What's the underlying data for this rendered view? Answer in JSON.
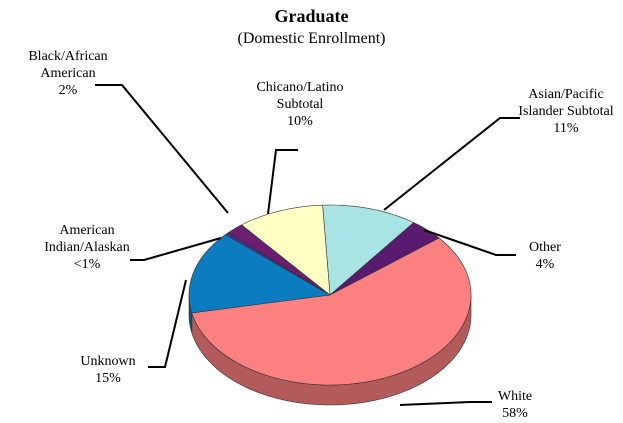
{
  "chart_data": {
    "type": "pie",
    "title": "Graduate",
    "subtitle": "(Domestic Enrollment)",
    "categories": [
      "Asian/Pacific Islander Subtotal",
      "Other",
      "White",
      "Unknown",
      "American Indian/Alaskan",
      "Black/African American",
      "Chicano/Latino Subtotal"
    ],
    "values": [
      11,
      4,
      58,
      15,
      0.5,
      2,
      10
    ],
    "value_labels": [
      "11%",
      "4%",
      "58%",
      "15%",
      "<1%",
      "2%",
      "10%"
    ],
    "colors": [
      "#a8e4e4",
      "#5a1a70",
      "#ff8080",
      "#0c7cc0",
      "#4a2a8a",
      "#6e1e6e",
      "#ffffc4"
    ]
  }
}
